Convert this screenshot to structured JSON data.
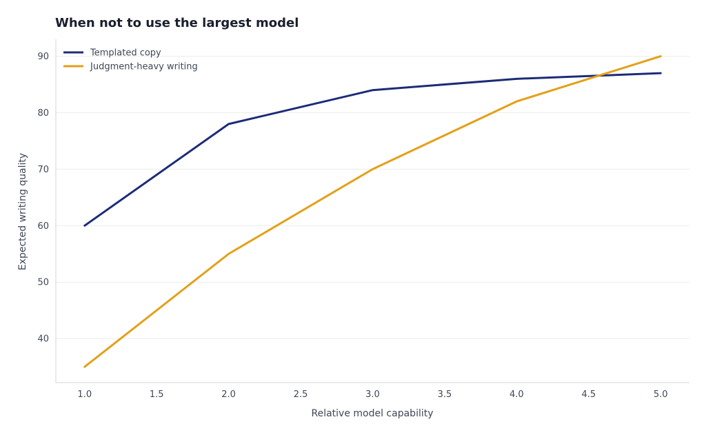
{
  "chart_data": {
    "type": "line",
    "title": "When not to use the largest model",
    "xlabel": "Relative model capability",
    "ylabel": "Expected writing quality",
    "xlim": [
      0.8,
      5.2
    ],
    "ylim": [
      32.2,
      93
    ],
    "xticks": [
      1.0,
      1.5,
      2.0,
      2.5,
      3.0,
      3.5,
      4.0,
      4.5,
      5.0
    ],
    "xtick_labels": [
      "1.0",
      "1.5",
      "2.0",
      "2.5",
      "3.0",
      "3.5",
      "4.0",
      "4.5",
      "5.0"
    ],
    "yticks": [
      40,
      50,
      60,
      70,
      80,
      90
    ],
    "ytick_labels": [
      "40",
      "50",
      "60",
      "70",
      "80",
      "90"
    ],
    "grid": "horizontal",
    "legend_position": "top-left",
    "series": [
      {
        "name": "Templated copy",
        "color": "#1c2b78",
        "points": [
          [
            1,
            60
          ],
          [
            2,
            78
          ],
          [
            3,
            84
          ],
          [
            4,
            86
          ],
          [
            5,
            87
          ]
        ]
      },
      {
        "name": "Judgment-heavy writing",
        "color": "#e3a018",
        "points": [
          [
            1,
            35
          ],
          [
            2,
            55
          ],
          [
            3,
            70
          ],
          [
            4,
            82
          ],
          [
            5,
            90
          ]
        ]
      }
    ]
  }
}
